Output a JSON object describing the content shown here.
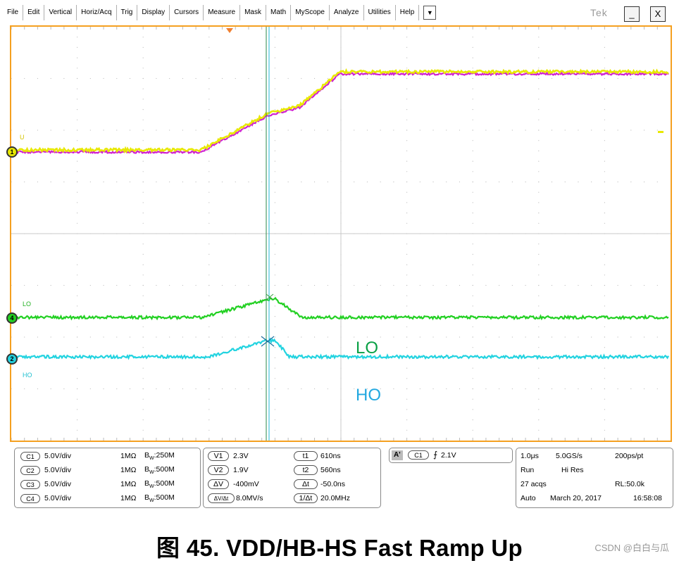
{
  "menu": {
    "items": [
      "File",
      "Edit",
      "Vertical",
      "Horiz/Acq",
      "Trig",
      "Display",
      "Cursors",
      "Measure",
      "Mask",
      "Math",
      "MyScope",
      "Analyze",
      "Utilities",
      "Help"
    ],
    "dropdown_glyph": "▼"
  },
  "brand": "Tek",
  "window": {
    "minimize": "_",
    "close": "X"
  },
  "channels": {
    "ch1": {
      "marker": "1",
      "label": "U",
      "color": "#e8e800"
    },
    "ch4": {
      "marker": "4",
      "label": "LO",
      "color": "#22d022"
    },
    "ch2": {
      "marker": "2",
      "label": "HO",
      "color": "#22d3e0"
    },
    "math": {
      "color": "#d020d0"
    }
  },
  "annotations": {
    "lo": "LO",
    "ho": "HO",
    "lo_color": "#0aa045",
    "ho_color": "#22a8e0"
  },
  "vertical_settings": [
    {
      "ch": "C1",
      "scale": "5.0V/div",
      "imp": "1MΩ",
      "bw_prefix": "B",
      "bw_sub": "W",
      "bw": ":250M"
    },
    {
      "ch": "C2",
      "scale": "5.0V/div",
      "imp": "1MΩ",
      "bw_prefix": "B",
      "bw_sub": "W",
      "bw": ":500M"
    },
    {
      "ch": "C3",
      "scale": "5.0V/div",
      "imp": "1MΩ",
      "bw_prefix": "B",
      "bw_sub": "W",
      "bw": ":500M"
    },
    {
      "ch": "C4",
      "scale": "5.0V/div",
      "imp": "1MΩ",
      "bw_prefix": "B",
      "bw_sub": "W",
      "bw": ":500M"
    }
  ],
  "cursors": {
    "v1_label": "V1",
    "v1": "2.3V",
    "v2_label": "V2",
    "v2": "1.9V",
    "dv_label": "ΔV",
    "dv": "-400mV",
    "dvdt_label": "ΔV/Δt",
    "dvdt": "8.0MV/s",
    "t1_label": "t1",
    "t1": "610ns",
    "t2_label": "t2",
    "t2": "560ns",
    "dt_label": "Δt",
    "dt": "-50.0ns",
    "inv_label": "1/Δt",
    "inv": "20.0MHz"
  },
  "trigger": {
    "mode": "A'",
    "source": "C1",
    "slope": "⨍",
    "level": "2.1V"
  },
  "timebase": {
    "scale": "1.0μs",
    "rate": "5.0GS/s",
    "res": "200ps/pt",
    "state": "Run",
    "mode": "Hi Res",
    "acqs": "27 acqs",
    "rl": "RL:50.0k",
    "trig_mode": "Auto",
    "date": "March 20, 2017",
    "time": "16:58:08"
  },
  "caption": "图 45.  VDD/HB-HS Fast Ramp Up",
  "watermark": "CSDN @白白与瓜"
}
